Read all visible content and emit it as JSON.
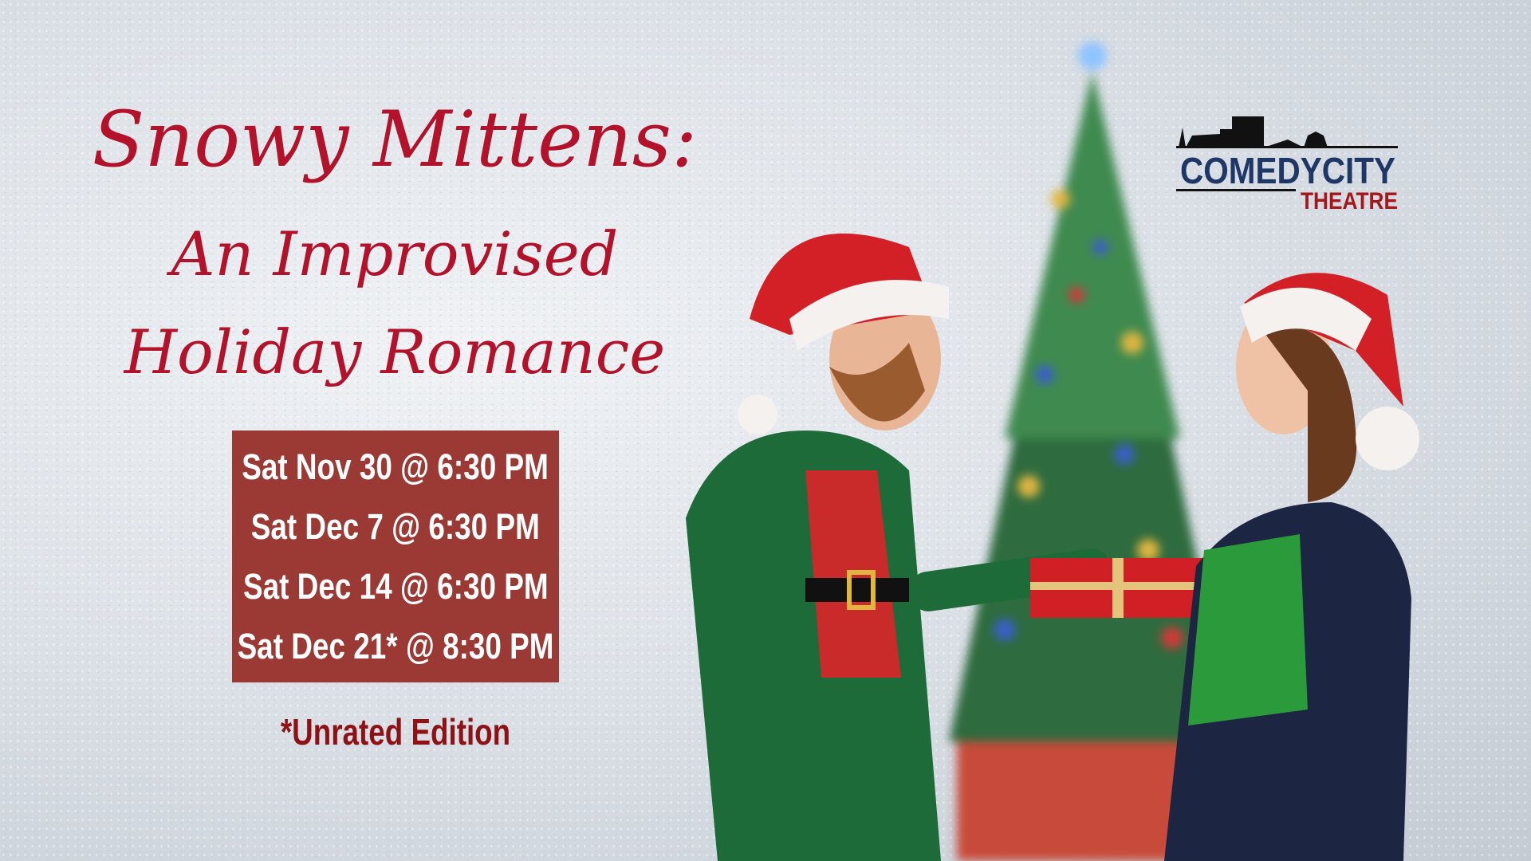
{
  "title": {
    "line1": "Snowy Mittens:",
    "line2": "An Improvised",
    "line3": "Holiday Romance"
  },
  "showtimes": [
    "Sat Nov 30 @ 6:30 PM",
    "Sat Dec 7 @ 6:30 PM",
    "Sat Dec 14 @ 6:30 PM",
    "Sat Dec 21* @ 8:30 PM"
  ],
  "note": "*Unrated Edition",
  "logo": {
    "name": "COMEDYCITY",
    "sub": "THEATRE",
    "name_color": "#1f3766",
    "sub_color": "#a3181d"
  },
  "colors": {
    "title": "#b3122a",
    "date_box": "#9b3a35"
  }
}
